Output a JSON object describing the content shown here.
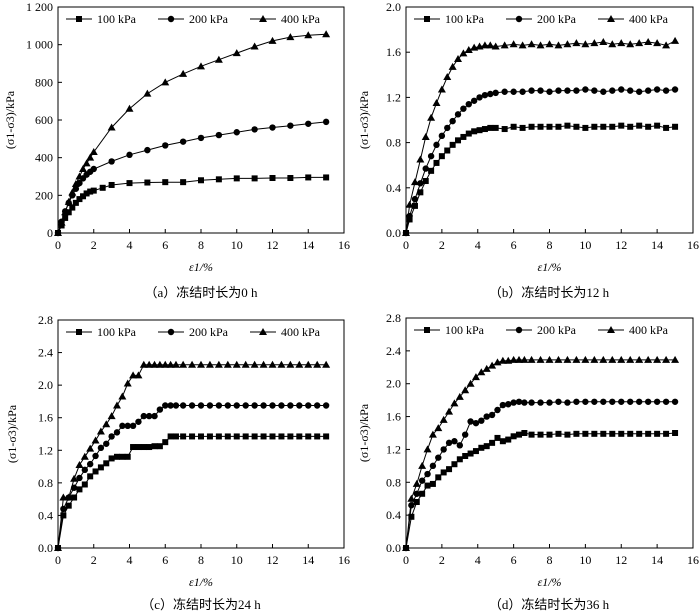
{
  "chart_data": [
    {
      "type": "line",
      "id": "a",
      "caption": "（a）冻结时长为0 h",
      "xlabel": "ε1/%",
      "ylabel": "(σ1-σ3)/kPa",
      "xlim": [
        0,
        16
      ],
      "ylim": [
        0,
        1200
      ],
      "xticks": [
        0,
        2,
        4,
        6,
        8,
        10,
        12,
        14,
        16
      ],
      "yticks": [
        0,
        200,
        400,
        600,
        800,
        1000,
        1200
      ],
      "ytick_labels": [
        "0",
        "200",
        "400",
        "600",
        "800",
        "1 000",
        "1 200"
      ],
      "series": [
        {
          "name": "100 kPa",
          "marker": "square",
          "x": [
            0.0,
            0.2,
            0.4,
            0.6,
            0.8,
            1.0,
            1.2,
            1.4,
            1.6,
            1.8,
            2.0,
            2.5,
            3.0,
            4.0,
            5.0,
            6.0,
            7.0,
            8.0,
            9.0,
            10.0,
            11.0,
            12.0,
            13.0,
            14.0,
            15.0
          ],
          "y": [
            0,
            40,
            80,
            110,
            135,
            160,
            180,
            195,
            210,
            220,
            225,
            240,
            255,
            265,
            268,
            270,
            270,
            280,
            285,
            290,
            290,
            292,
            292,
            295,
            295
          ]
        },
        {
          "name": "200 kPa",
          "marker": "circle",
          "x": [
            0.0,
            0.2,
            0.4,
            0.6,
            0.8,
            1.0,
            1.2,
            1.4,
            1.6,
            1.8,
            2.0,
            3.0,
            4.0,
            5.0,
            6.0,
            7.0,
            8.0,
            9.0,
            10.0,
            11.0,
            12.0,
            13.0,
            14.0,
            15.0
          ],
          "y": [
            0,
            60,
            115,
            160,
            200,
            235,
            265,
            290,
            310,
            325,
            340,
            380,
            415,
            440,
            465,
            485,
            505,
            520,
            535,
            550,
            560,
            570,
            580,
            590
          ]
        },
        {
          "name": "400 kPa",
          "marker": "triangle",
          "x": [
            0.0,
            0.2,
            0.4,
            0.6,
            0.8,
            1.0,
            1.2,
            1.4,
            1.6,
            1.8,
            2.0,
            3.0,
            4.0,
            5.0,
            6.0,
            7.0,
            8.0,
            9.0,
            10.0,
            11.0,
            12.0,
            13.0,
            14.0,
            15.0
          ],
          "y": [
            0,
            55,
            110,
            165,
            215,
            260,
            300,
            340,
            370,
            400,
            430,
            560,
            660,
            740,
            800,
            845,
            885,
            920,
            955,
            990,
            1020,
            1040,
            1050,
            1055
          ]
        }
      ]
    },
    {
      "type": "line",
      "id": "b",
      "caption": "（b）冻结时长为12 h",
      "xlabel": "ε1/%",
      "ylabel": "(σ1-σ3)/kPa",
      "xlim": [
        0,
        16
      ],
      "ylim": [
        0,
        2.0
      ],
      "xticks": [
        0,
        2,
        4,
        6,
        8,
        10,
        12,
        14,
        16
      ],
      "yticks": [
        0,
        0.4,
        0.8,
        1.2,
        1.6,
        2.0
      ],
      "ytick_labels": [
        "0.0",
        "0.4",
        "0.8",
        "1.2",
        "1.6",
        "2.0"
      ],
      "series": [
        {
          "name": "100 kPa",
          "marker": "square",
          "x": [
            0.0,
            0.2,
            0.5,
            0.8,
            1.1,
            1.4,
            1.7,
            2.0,
            2.3,
            2.6,
            2.9,
            3.2,
            3.5,
            3.8,
            4.1,
            4.4,
            4.7,
            5.0,
            5.5,
            6.0,
            6.5,
            7.0,
            7.5,
            8.0,
            8.5,
            9.0,
            9.5,
            10.0,
            10.5,
            11.0,
            11.5,
            12.0,
            12.5,
            13.0,
            13.5,
            14.0,
            14.5,
            15.0
          ],
          "y": [
            0.0,
            0.12,
            0.24,
            0.36,
            0.46,
            0.55,
            0.62,
            0.68,
            0.73,
            0.78,
            0.82,
            0.85,
            0.88,
            0.9,
            0.91,
            0.92,
            0.93,
            0.93,
            0.92,
            0.94,
            0.93,
            0.94,
            0.94,
            0.94,
            0.94,
            0.95,
            0.94,
            0.93,
            0.94,
            0.94,
            0.94,
            0.95,
            0.94,
            0.95,
            0.94,
            0.95,
            0.93,
            0.94
          ]
        },
        {
          "name": "200 kPa",
          "marker": "circle",
          "x": [
            0.0,
            0.2,
            0.5,
            0.8,
            1.1,
            1.4,
            1.7,
            2.0,
            2.3,
            2.6,
            2.9,
            3.2,
            3.5,
            3.8,
            4.1,
            4.4,
            4.7,
            5.0,
            5.5,
            6.0,
            6.5,
            7.0,
            7.5,
            8.0,
            8.5,
            9.0,
            9.5,
            10.0,
            10.5,
            11.0,
            11.5,
            12.0,
            12.5,
            13.0,
            13.5,
            14.0,
            14.5,
            15.0
          ],
          "y": [
            0.0,
            0.15,
            0.3,
            0.44,
            0.57,
            0.68,
            0.78,
            0.86,
            0.93,
            0.99,
            1.05,
            1.1,
            1.14,
            1.17,
            1.2,
            1.22,
            1.23,
            1.24,
            1.25,
            1.25,
            1.25,
            1.26,
            1.26,
            1.25,
            1.26,
            1.26,
            1.26,
            1.27,
            1.26,
            1.25,
            1.26,
            1.27,
            1.26,
            1.25,
            1.26,
            1.27,
            1.26,
            1.27
          ]
        },
        {
          "name": "400 kPa",
          "marker": "triangle",
          "x": [
            0.0,
            0.2,
            0.5,
            0.8,
            1.1,
            1.4,
            1.7,
            2.0,
            2.3,
            2.6,
            2.9,
            3.2,
            3.5,
            3.8,
            4.1,
            4.4,
            4.7,
            5.0,
            5.5,
            6.0,
            6.5,
            7.0,
            7.5,
            8.0,
            8.5,
            9.0,
            9.5,
            10.0,
            10.5,
            11.0,
            11.5,
            12.0,
            12.5,
            13.0,
            13.5,
            14.0,
            14.5,
            15.0
          ],
          "y": [
            0.0,
            0.25,
            0.45,
            0.65,
            0.85,
            1.02,
            1.15,
            1.27,
            1.38,
            1.47,
            1.54,
            1.59,
            1.62,
            1.64,
            1.65,
            1.66,
            1.66,
            1.65,
            1.66,
            1.67,
            1.66,
            1.67,
            1.66,
            1.67,
            1.66,
            1.67,
            1.68,
            1.67,
            1.68,
            1.69,
            1.67,
            1.68,
            1.67,
            1.68,
            1.69,
            1.68,
            1.66,
            1.7
          ]
        }
      ]
    },
    {
      "type": "line",
      "id": "c",
      "caption": "（c）冻结时长为24 h",
      "xlabel": "ε1/%",
      "ylabel": "(σ1-σ3)/kPa",
      "xlim": [
        0,
        16
      ],
      "ylim": [
        0,
        2.8
      ],
      "xticks": [
        0,
        2,
        4,
        6,
        8,
        10,
        12,
        14,
        16
      ],
      "yticks": [
        0,
        0.4,
        0.8,
        1.2,
        1.6,
        2.0,
        2.4,
        2.8
      ],
      "ytick_labels": [
        "0.0",
        "0.4",
        "0.8",
        "1.2",
        "1.6",
        "2.0",
        "2.4",
        "2.8"
      ],
      "series": [
        {
          "name": "100 kPa",
          "marker": "square",
          "x": [
            0.0,
            0.3,
            0.6,
            0.9,
            1.2,
            1.5,
            1.8,
            2.1,
            2.4,
            2.7,
            3.0,
            3.3,
            3.6,
            3.9,
            4.2,
            4.5,
            4.8,
            5.1,
            5.4,
            5.7,
            6.0,
            6.3,
            6.6,
            7.0,
            7.5,
            8.0,
            8.5,
            9.0,
            9.5,
            10.0,
            10.5,
            11.0,
            11.5,
            12.0,
            12.5,
            13.0,
            13.5,
            14.0,
            14.5,
            15.0
          ],
          "y": [
            0.0,
            0.4,
            0.52,
            0.62,
            0.72,
            0.78,
            0.88,
            0.94,
            0.99,
            1.04,
            1.1,
            1.12,
            1.12,
            1.12,
            1.24,
            1.24,
            1.24,
            1.24,
            1.25,
            1.25,
            1.3,
            1.37,
            1.37,
            1.37,
            1.37,
            1.37,
            1.37,
            1.37,
            1.37,
            1.37,
            1.37,
            1.37,
            1.37,
            1.37,
            1.37,
            1.37,
            1.37,
            1.37,
            1.37,
            1.37
          ]
        },
        {
          "name": "200 kPa",
          "marker": "circle",
          "x": [
            0.0,
            0.3,
            0.6,
            0.9,
            1.2,
            1.5,
            1.8,
            2.1,
            2.4,
            2.7,
            3.0,
            3.3,
            3.6,
            3.9,
            4.2,
            4.5,
            4.8,
            5.1,
            5.4,
            5.7,
            6.0,
            6.3,
            6.6,
            7.0,
            7.5,
            8.0,
            8.5,
            9.0,
            9.5,
            10.0,
            10.5,
            11.0,
            11.5,
            12.0,
            12.5,
            13.0,
            13.5,
            14.0,
            14.5,
            15.0
          ],
          "y": [
            0.0,
            0.48,
            0.62,
            0.74,
            0.86,
            0.96,
            1.03,
            1.13,
            1.23,
            1.28,
            1.37,
            1.42,
            1.5,
            1.5,
            1.5,
            1.55,
            1.62,
            1.62,
            1.62,
            1.7,
            1.75,
            1.75,
            1.75,
            1.75,
            1.75,
            1.75,
            1.75,
            1.75,
            1.75,
            1.75,
            1.75,
            1.75,
            1.75,
            1.75,
            1.75,
            1.75,
            1.75,
            1.75,
            1.75,
            1.75
          ]
        },
        {
          "name": "400 kPa",
          "marker": "triangle",
          "x": [
            0.0,
            0.3,
            0.6,
            0.9,
            1.2,
            1.5,
            1.8,
            2.1,
            2.4,
            2.7,
            3.0,
            3.3,
            3.6,
            3.9,
            4.2,
            4.5,
            4.8,
            5.1,
            5.4,
            5.7,
            6.0,
            6.3,
            6.6,
            7.0,
            7.5,
            8.0,
            8.5,
            9.0,
            9.5,
            10.0,
            10.5,
            11.0,
            11.5,
            12.0,
            12.5,
            13.0,
            13.5,
            14.0,
            14.5,
            15.0
          ],
          "y": [
            0.0,
            0.62,
            0.62,
            0.85,
            1.02,
            1.12,
            1.22,
            1.32,
            1.43,
            1.52,
            1.62,
            1.75,
            1.86,
            2.02,
            2.12,
            2.12,
            2.25,
            2.25,
            2.25,
            2.25,
            2.25,
            2.25,
            2.25,
            2.25,
            2.25,
            2.25,
            2.25,
            2.25,
            2.25,
            2.25,
            2.25,
            2.25,
            2.25,
            2.25,
            2.25,
            2.25,
            2.25,
            2.25,
            2.25,
            2.25
          ]
        }
      ]
    },
    {
      "type": "line",
      "id": "d",
      "caption": "（d）冻结时长为36 h",
      "xlabel": "ε1/%",
      "ylabel": "(σ1-σ3)/kPa",
      "xlim": [
        0,
        16
      ],
      "ylim": [
        0,
        2.8
      ],
      "xticks": [
        0,
        2,
        4,
        6,
        8,
        10,
        12,
        14,
        16
      ],
      "yticks": [
        0,
        0.4,
        0.8,
        1.2,
        1.6,
        2.0,
        2.4,
        2.8
      ],
      "ytick_labels": [
        "0.0",
        "0.4",
        "0.8",
        "1.2",
        "1.6",
        "2.0",
        "2.4",
        "2.8"
      ],
      "series": [
        {
          "name": "100 kPa",
          "marker": "square",
          "x": [
            0.0,
            0.3,
            0.6,
            0.9,
            1.2,
            1.5,
            1.8,
            2.1,
            2.4,
            2.7,
            3.0,
            3.3,
            3.6,
            3.9,
            4.2,
            4.5,
            4.8,
            5.1,
            5.4,
            5.7,
            6.0,
            6.3,
            6.6,
            7.0,
            7.5,
            8.0,
            8.5,
            9.0,
            9.5,
            10.0,
            10.5,
            11.0,
            11.5,
            12.0,
            12.5,
            13.0,
            13.5,
            14.0,
            14.5,
            15.0
          ],
          "y": [
            0.0,
            0.38,
            0.56,
            0.66,
            0.76,
            0.78,
            0.86,
            0.92,
            0.96,
            1.02,
            1.08,
            1.12,
            1.15,
            1.18,
            1.22,
            1.24,
            1.28,
            1.34,
            1.3,
            1.32,
            1.36,
            1.38,
            1.4,
            1.38,
            1.38,
            1.38,
            1.39,
            1.38,
            1.39,
            1.39,
            1.39,
            1.39,
            1.39,
            1.39,
            1.39,
            1.39,
            1.39,
            1.39,
            1.39,
            1.4
          ]
        },
        {
          "name": "200 kPa",
          "marker": "circle",
          "x": [
            0.0,
            0.3,
            0.6,
            0.9,
            1.2,
            1.5,
            1.8,
            2.1,
            2.4,
            2.7,
            3.0,
            3.3,
            3.6,
            3.9,
            4.2,
            4.5,
            4.8,
            5.1,
            5.4,
            5.7,
            6.0,
            6.3,
            6.6,
            7.0,
            7.5,
            8.0,
            8.5,
            9.0,
            9.5,
            10.0,
            10.5,
            11.0,
            11.5,
            12.0,
            12.5,
            13.0,
            13.5,
            14.0,
            14.5,
            15.0
          ],
          "y": [
            0.0,
            0.52,
            0.66,
            0.82,
            0.9,
            1.0,
            1.1,
            1.2,
            1.28,
            1.3,
            1.25,
            1.38,
            1.54,
            1.52,
            1.55,
            1.6,
            1.62,
            1.68,
            1.74,
            1.75,
            1.77,
            1.78,
            1.77,
            1.77,
            1.77,
            1.77,
            1.78,
            1.77,
            1.78,
            1.78,
            1.78,
            1.78,
            1.78,
            1.78,
            1.78,
            1.78,
            1.78,
            1.78,
            1.78,
            1.78
          ]
        },
        {
          "name": "400 kPa",
          "marker": "triangle",
          "x": [
            0.0,
            0.3,
            0.6,
            0.9,
            1.2,
            1.5,
            1.8,
            2.1,
            2.4,
            2.7,
            3.0,
            3.3,
            3.6,
            3.9,
            4.2,
            4.5,
            4.8,
            5.1,
            5.4,
            5.7,
            6.0,
            6.3,
            6.6,
            7.0,
            7.5,
            8.0,
            8.5,
            9.0,
            9.5,
            10.0,
            10.5,
            11.0,
            11.5,
            12.0,
            12.5,
            13.0,
            13.5,
            14.0,
            14.5,
            15.0
          ],
          "y": [
            0.0,
            0.6,
            0.78,
            1.0,
            1.2,
            1.38,
            1.46,
            1.56,
            1.66,
            1.76,
            1.84,
            1.92,
            2.0,
            2.08,
            2.14,
            2.18,
            2.22,
            2.26,
            2.28,
            2.28,
            2.29,
            2.29,
            2.29,
            2.29,
            2.29,
            2.29,
            2.29,
            2.29,
            2.29,
            2.29,
            2.29,
            2.29,
            2.29,
            2.29,
            2.29,
            2.29,
            2.29,
            2.29,
            2.29,
            2.29
          ]
        }
      ]
    }
  ]
}
